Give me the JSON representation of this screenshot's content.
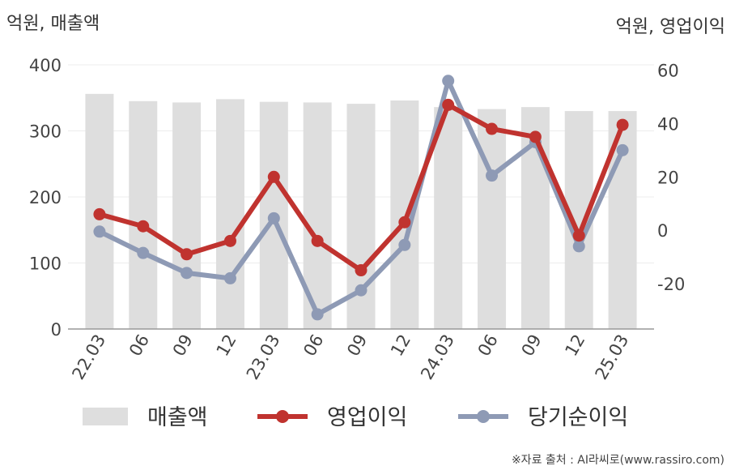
{
  "chart_data": {
    "type": "bar+line",
    "left_axis_title": "억원, 매출액",
    "right_axis_title": "억원, 영업이익",
    "categories": [
      "22.03",
      "06",
      "09",
      "12",
      "23.03",
      "06",
      "09",
      "12",
      "24.03",
      "06",
      "09",
      "12",
      "25.03"
    ],
    "left_axis": {
      "ylim": [
        0,
        400
      ],
      "ticks": [
        "0",
        "100",
        "200",
        "300",
        "400"
      ]
    },
    "right_axis": {
      "ylim": [
        -37,
        62
      ],
      "ticks": [
        "-20",
        "0",
        "20",
        "40",
        "60"
      ],
      "tick_values": [
        -20,
        0,
        20,
        40,
        60
      ]
    },
    "series": [
      {
        "name": "매출액",
        "kind": "bar",
        "axis": "left",
        "color": "#dedede",
        "values": [
          356,
          345,
          343,
          348,
          344,
          343,
          341,
          346,
          336,
          333,
          336,
          330,
          330
        ]
      },
      {
        "name": "영업이익",
        "kind": "line",
        "axis": "right",
        "color": "#c0332f",
        "values": [
          6,
          1.5,
          -9,
          -4,
          20,
          -4,
          -15,
          3,
          47,
          38,
          35,
          -2,
          39.5
        ]
      },
      {
        "name": "당기순이익",
        "kind": "line",
        "axis": "right",
        "color": "#8e9ab5",
        "values": [
          -0.5,
          -8.5,
          -16,
          -18,
          4.5,
          -31.5,
          -22.5,
          -5.5,
          56,
          20.5,
          33,
          -6,
          30
        ]
      }
    ],
    "grid": true,
    "legend": "bottom"
  },
  "source": "※자료 출처 : AI라씨로(www.rassiro.com)"
}
